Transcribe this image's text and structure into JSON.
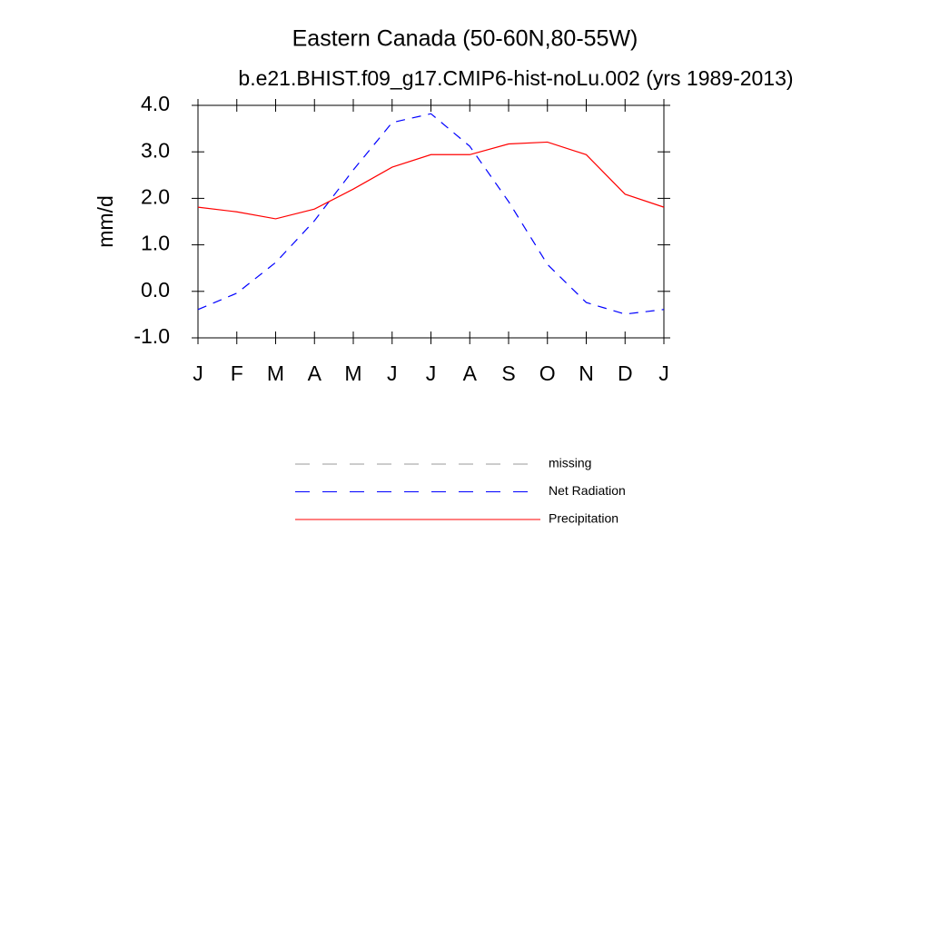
{
  "chart_data": {
    "type": "line",
    "title": "Eastern Canada (50-60N,80-55W)",
    "subtitle": "b.e21.BHIST.f09_g17.CMIP6-hist-noLu.002 (yrs 1989-2013)",
    "y_label": "mm/d",
    "categories": [
      "J",
      "F",
      "M",
      "A",
      "M",
      "J",
      "J",
      "A",
      "S",
      "O",
      "N",
      "D",
      "J"
    ],
    "series": [
      {
        "name": "missing",
        "color": "#999999",
        "dash": true,
        "values": [
          null,
          null,
          null,
          null,
          null,
          null,
          null,
          null,
          null,
          null,
          null,
          null,
          null
        ]
      },
      {
        "name": "Net Radiation",
        "color": "#0000ff",
        "dash": true,
        "values": [
          -0.39,
          -0.04,
          0.62,
          1.52,
          2.61,
          3.63,
          3.82,
          3.12,
          1.93,
          0.58,
          -0.24,
          -0.49,
          -0.39
        ]
      },
      {
        "name": "Precipitation",
        "color": "#ff0000",
        "dash": false,
        "values": [
          1.81,
          1.71,
          1.56,
          1.77,
          2.2,
          2.67,
          2.94,
          2.94,
          3.17,
          3.21,
          2.94,
          2.09,
          1.81
        ]
      }
    ],
    "ylim": [
      -1,
      4
    ],
    "yticks": [
      {
        "value": -1,
        "label": "-1.0"
      },
      {
        "value": 0,
        "label": "0.0"
      },
      {
        "value": 1,
        "label": "1.0"
      },
      {
        "value": 2,
        "label": "2.0"
      },
      {
        "value": 3,
        "label": "3.0"
      },
      {
        "value": 4,
        "label": "4.0"
      }
    ],
    "grid": false
  }
}
